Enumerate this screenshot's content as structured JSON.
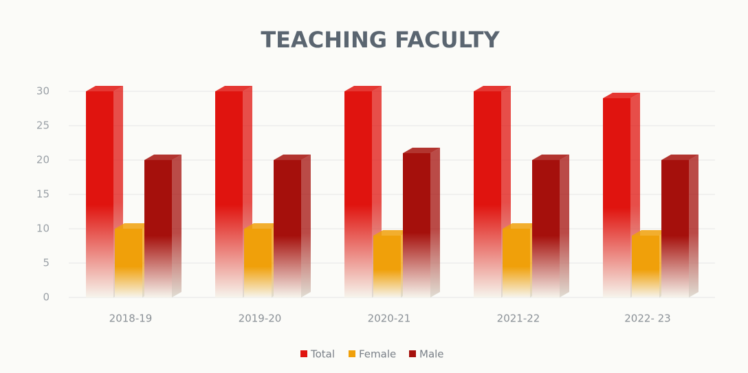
{
  "chart_data": {
    "type": "bar3d",
    "title": "TEACHING FACULTY",
    "categories": [
      "2018-19",
      "2019-20",
      "2020-21",
      "2021-22",
      "2022- 23"
    ],
    "series": [
      {
        "name": "Total",
        "color": "#e0140f",
        "values": [
          30,
          30,
          30,
          30,
          29
        ]
      },
      {
        "name": "Female",
        "color": "#f0a00a",
        "values": [
          10,
          10,
          9,
          10,
          9
        ]
      },
      {
        "name": "Male",
        "color": "#a5100c",
        "values": [
          20,
          20,
          21,
          20,
          20
        ]
      }
    ],
    "ylim": [
      0,
      30
    ],
    "yticks": [
      0,
      5,
      10,
      15,
      20,
      25,
      30
    ],
    "grid": true,
    "legend": "bottom"
  }
}
